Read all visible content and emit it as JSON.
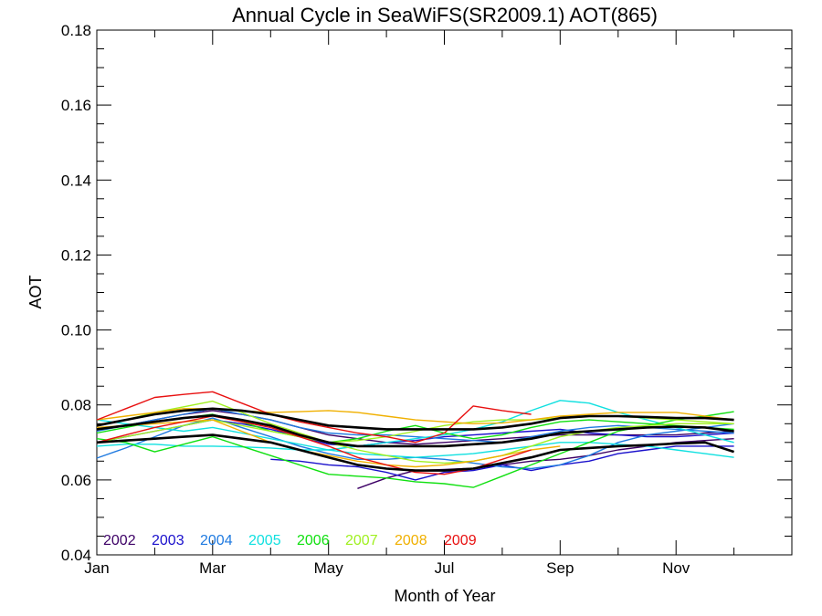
{
  "chart_data": {
    "type": "line",
    "title": "Annual Cycle in SeaWiFS(SR2009.1) AOT(865)",
    "xlabel": "Month of Year",
    "ylabel": "AOT",
    "xlim": [
      1,
      13
    ],
    "ylim": [
      0.04,
      0.18
    ],
    "x_ticks": [
      {
        "value": 1,
        "label": "Jan"
      },
      {
        "value": 3,
        "label": "Mar"
      },
      {
        "value": 5,
        "label": "May"
      },
      {
        "value": 7,
        "label": "Jul"
      },
      {
        "value": 9,
        "label": "Sep"
      },
      {
        "value": 11,
        "label": "Nov"
      }
    ],
    "y_ticks": [
      {
        "value": 0.04,
        "label": "0.04"
      },
      {
        "value": 0.06,
        "label": "0.06"
      },
      {
        "value": 0.08,
        "label": "0.08"
      },
      {
        "value": 0.1,
        "label": "0.10"
      },
      {
        "value": 0.12,
        "label": "0.12"
      },
      {
        "value": 0.14,
        "label": "0.14"
      },
      {
        "value": 0.16,
        "label": "0.16"
      },
      {
        "value": 0.18,
        "label": "0.18"
      }
    ],
    "legend_position": "bottom-left",
    "series": [
      {
        "name": "2002",
        "color": "#3d0066",
        "x": [
          5.5,
          6,
          6.5,
          7,
          7.5,
          8,
          8.5,
          9,
          9.5,
          10,
          10.5,
          11,
          11.5,
          12
        ],
        "y": [
          0.0577,
          0.0605,
          0.0625,
          0.0628,
          0.0631,
          0.064,
          0.065,
          0.0655,
          0.0665,
          0.068,
          0.069,
          0.07,
          0.0705,
          0.071
        ]
      },
      {
        "name": "2002",
        "color": "#3d0066",
        "x": [
          1,
          1.5,
          2,
          2.5,
          3,
          3.5,
          4,
          4.5,
          5,
          5.5,
          6,
          6.5,
          7,
          7.5,
          8,
          8.5,
          9,
          9.5,
          10,
          10.5,
          11,
          11.5,
          12
        ],
        "y": [
          0.0735,
          0.0745,
          0.076,
          0.0775,
          0.0785,
          0.0775,
          0.076,
          0.074,
          0.072,
          0.071,
          0.07,
          0.0695,
          0.07,
          0.0705,
          0.071,
          0.0715,
          0.072,
          0.072,
          0.072,
          0.072,
          0.072,
          0.0725,
          0.073
        ]
      },
      {
        "name": "2003",
        "color": "#1a10cc",
        "x": [
          4,
          4.5,
          5,
          5.5,
          6,
          6.5,
          7,
          7.5,
          8,
          8.5,
          9,
          9.5,
          10,
          10.5,
          11,
          11.5,
          12
        ],
        "y": [
          0.0655,
          0.065,
          0.064,
          0.0635,
          0.062,
          0.06,
          0.062,
          0.0625,
          0.064,
          0.0625,
          0.064,
          0.065,
          0.067,
          0.068,
          0.069,
          0.069,
          0.069
        ]
      },
      {
        "name": "2003",
        "color": "#1a10cc",
        "x": [
          1,
          1.5,
          2,
          2.5,
          3,
          3.5,
          4,
          4.5,
          5,
          5.5,
          6,
          6.5,
          7,
          7.5,
          8,
          8.5,
          9,
          9.5,
          10,
          10.5,
          11,
          11.5,
          12
        ],
        "y": [
          0.07,
          0.0715,
          0.073,
          0.0745,
          0.076,
          0.075,
          0.0735,
          0.0715,
          0.0695,
          0.069,
          0.07,
          0.0705,
          0.0715,
          0.072,
          0.0725,
          0.073,
          0.0735,
          0.0725,
          0.072,
          0.0715,
          0.0715,
          0.072,
          0.0725
        ]
      },
      {
        "name": "2004",
        "color": "#1f7ae0",
        "x": [
          1,
          1.5,
          2,
          2.5,
          3,
          3.5,
          4,
          4.5,
          5,
          5.5,
          6,
          6.5,
          7,
          7.5,
          8,
          8.5,
          9,
          9.5,
          10,
          10.5,
          11,
          11.5,
          12
        ],
        "y": [
          0.0658,
          0.0685,
          0.0715,
          0.0745,
          0.0765,
          0.074,
          0.0715,
          0.069,
          0.067,
          0.0655,
          0.0655,
          0.066,
          0.0655,
          0.0645,
          0.0635,
          0.063,
          0.064,
          0.0665,
          0.07,
          0.072,
          0.073,
          0.074,
          0.075
        ]
      },
      {
        "name": "2004",
        "color": "#1f7ae0",
        "x": [
          1,
          1.5,
          2,
          2.5,
          3,
          3.5,
          4,
          4.5,
          5,
          5.5,
          6,
          6.5,
          7,
          7.5,
          8,
          8.5,
          9,
          9.5,
          10,
          10.5,
          11,
          11.5,
          12
        ],
        "y": [
          0.073,
          0.0745,
          0.076,
          0.0775,
          0.079,
          0.0775,
          0.076,
          0.074,
          0.0725,
          0.072,
          0.072,
          0.0715,
          0.071,
          0.0705,
          0.07,
          0.0715,
          0.073,
          0.074,
          0.0745,
          0.074,
          0.0735,
          0.073,
          0.0725
        ]
      },
      {
        "name": "2005",
        "color": "#10e0e0",
        "x": [
          1,
          1.5,
          2,
          2.5,
          3,
          3.5,
          4,
          4.5,
          5,
          5.5,
          6,
          6.5,
          7,
          7.5,
          8,
          8.5,
          9,
          9.5,
          10,
          10.5,
          11,
          11.5,
          12
        ],
        "y": [
          0.069,
          0.0695,
          0.0695,
          0.069,
          0.069,
          0.0688,
          0.0685,
          0.068,
          0.068,
          0.069,
          0.07,
          0.071,
          0.072,
          0.0735,
          0.0755,
          0.0785,
          0.0812,
          0.0805,
          0.078,
          0.076,
          0.074,
          0.072,
          0.07
        ]
      },
      {
        "name": "2005",
        "color": "#10e0e0",
        "x": [
          1,
          1.5,
          2,
          2.5,
          3,
          3.5,
          4,
          4.5,
          5,
          5.5,
          6,
          6.5,
          7,
          7.5,
          8,
          8.5,
          9,
          9.5,
          10,
          10.5,
          11,
          11.5,
          12
        ],
        "y": [
          0.076,
          0.075,
          0.074,
          0.073,
          0.074,
          0.0725,
          0.071,
          0.0695,
          0.068,
          0.067,
          0.0665,
          0.066,
          0.0665,
          0.067,
          0.068,
          0.069,
          0.07,
          0.07,
          0.0695,
          0.069,
          0.068,
          0.067,
          0.066
        ]
      },
      {
        "name": "2006",
        "color": "#10e010",
        "x": [
          1,
          1.5,
          2,
          2.5,
          3,
          3.5,
          4,
          4.5,
          5,
          5.5,
          6,
          6.5,
          7,
          7.5,
          8,
          8.5,
          9,
          9.5,
          10,
          10.5,
          11,
          11.5,
          12
        ],
        "y": [
          0.071,
          0.07,
          0.0675,
          0.0695,
          0.0715,
          0.069,
          0.0665,
          0.064,
          0.0615,
          0.061,
          0.0605,
          0.0595,
          0.059,
          0.058,
          0.061,
          0.064,
          0.067,
          0.07,
          0.073,
          0.0745,
          0.076,
          0.077,
          0.0782
        ]
      },
      {
        "name": "2006",
        "color": "#10e010",
        "x": [
          1,
          1.5,
          2,
          2.5,
          3,
          3.5,
          4,
          4.5,
          5,
          5.5,
          6,
          6.5,
          7,
          7.5,
          8,
          8.5,
          9,
          9.5,
          10,
          10.5,
          11,
          11.5,
          12
        ],
        "y": [
          0.0725,
          0.074,
          0.0755,
          0.0765,
          0.0775,
          0.0755,
          0.073,
          0.0715,
          0.07,
          0.071,
          0.073,
          0.0745,
          0.0725,
          0.071,
          0.072,
          0.074,
          0.0755,
          0.076,
          0.0755,
          0.075,
          0.0745,
          0.074,
          0.0735
        ]
      },
      {
        "name": "2007",
        "color": "#a0f020",
        "x": [
          1,
          1.5,
          2,
          2.5,
          3,
          3.5,
          4,
          4.5,
          5,
          5.5,
          6,
          6.5,
          7,
          7.5,
          8,
          8.5,
          9,
          9.5,
          10,
          10.5,
          11,
          11.5,
          12
        ],
        "y": [
          0.0745,
          0.076,
          0.078,
          0.0795,
          0.081,
          0.078,
          0.075,
          0.0725,
          0.07,
          0.068,
          0.0665,
          0.065,
          0.0645,
          0.065,
          0.0665,
          0.069,
          0.0715,
          0.073,
          0.074,
          0.0745,
          0.075,
          0.075,
          0.075
        ]
      },
      {
        "name": "2007",
        "color": "#a0f020",
        "x": [
          1,
          1.5,
          2,
          2.5,
          3,
          3.5,
          4,
          4.5,
          5,
          5.5,
          6,
          6.5,
          7,
          7.5,
          8,
          8.5,
          9,
          9.5,
          10,
          10.5,
          11,
          11.5,
          12
        ],
        "y": [
          0.07,
          0.0715,
          0.073,
          0.0745,
          0.076,
          0.0745,
          0.073,
          0.0715,
          0.07,
          0.0705,
          0.0715,
          0.073,
          0.0745,
          0.0755,
          0.076,
          0.076,
          0.0765,
          0.077,
          0.077,
          0.0765,
          0.076,
          0.0755,
          0.075
        ]
      },
      {
        "name": "2008",
        "color": "#f0b000",
        "x": [
          1,
          1.5,
          2,
          2.5,
          3,
          3.5,
          4,
          4.5,
          5,
          5.5,
          6,
          6.5,
          7,
          7.5,
          8,
          8.5,
          9,
          9.5,
          10,
          10.5,
          11,
          11.5,
          12
        ],
        "y": [
          0.076,
          0.077,
          0.078,
          0.079,
          0.079,
          0.0785,
          0.078,
          0.0782,
          0.0785,
          0.078,
          0.077,
          0.076,
          0.0755,
          0.075,
          0.0752,
          0.076,
          0.077,
          0.0775,
          0.078,
          0.078,
          0.078,
          0.077,
          0.076
        ]
      },
      {
        "name": "2008",
        "color": "#f0b000",
        "x": [
          1,
          1.5,
          2,
          2.5,
          3,
          3.5,
          4,
          4.5,
          5,
          5.5,
          6,
          6.5,
          7,
          7.5,
          8,
          8.5,
          9
        ],
        "y": [
          0.074,
          0.0745,
          0.075,
          0.0755,
          0.076,
          0.073,
          0.07,
          0.068,
          0.0665,
          0.065,
          0.064,
          0.0635,
          0.064,
          0.065,
          0.0665,
          0.068,
          0.069
        ]
      },
      {
        "name": "2009",
        "color": "#e81010",
        "x": [
          1,
          1.5,
          2,
          2.5,
          3,
          3.5,
          4,
          4.5,
          5,
          5.5,
          6,
          6.5,
          7,
          7.5,
          8,
          8.5
        ],
        "y": [
          0.076,
          0.079,
          0.082,
          0.0828,
          0.0835,
          0.0805,
          0.0775,
          0.0755,
          0.074,
          0.0725,
          0.0715,
          0.07,
          0.0725,
          0.0797,
          0.0785,
          0.0775
        ]
      },
      {
        "name": "2009",
        "color": "#e81010",
        "x": [
          1,
          1.5,
          2,
          2.5,
          3,
          3.5,
          4,
          4.5,
          5,
          5.5,
          6,
          6.5,
          7,
          7.5,
          8,
          8.5
        ],
        "y": [
          0.07,
          0.072,
          0.074,
          0.0755,
          0.077,
          0.0755,
          0.074,
          0.0715,
          0.069,
          0.066,
          0.064,
          0.062,
          0.0615,
          0.063,
          0.0655,
          0.068
        ]
      },
      {
        "name": "",
        "color": "#000000",
        "bold": true,
        "x": [
          1,
          1.5,
          2,
          2.5,
          3,
          3.5,
          4,
          4.5,
          5,
          5.5,
          6,
          6.5,
          7,
          7.5,
          8,
          8.5,
          9,
          9.5,
          10,
          10.5,
          11,
          11.5,
          12
        ],
        "y": [
          0.07,
          0.0705,
          0.071,
          0.0715,
          0.072,
          0.071,
          0.07,
          0.068,
          0.066,
          0.064,
          0.063,
          0.0625,
          0.0625,
          0.063,
          0.0645,
          0.066,
          0.068,
          0.0685,
          0.069,
          0.0693,
          0.0697,
          0.07,
          0.0675
        ]
      },
      {
        "name": "",
        "color": "#000000",
        "bold": true,
        "x": [
          1,
          1.5,
          2,
          2.5,
          3,
          3.5,
          4,
          4.5,
          5,
          5.5,
          6,
          6.5,
          7,
          7.5,
          8,
          8.5,
          9,
          9.5,
          10,
          10.5,
          11,
          11.5,
          12
        ],
        "y": [
          0.0735,
          0.0745,
          0.0755,
          0.0765,
          0.0772,
          0.076,
          0.0745,
          0.072,
          0.07,
          0.069,
          0.069,
          0.069,
          0.069,
          0.0695,
          0.07,
          0.071,
          0.0725,
          0.073,
          0.0735,
          0.074,
          0.0742,
          0.074,
          0.073
        ]
      },
      {
        "name": "",
        "color": "#000000",
        "bold": true,
        "x": [
          1,
          1.5,
          2,
          2.5,
          3,
          3.5,
          4,
          4.5,
          5,
          5.5,
          6,
          6.5,
          7,
          7.5,
          8,
          8.5,
          9,
          9.5,
          10,
          10.5,
          11,
          11.5,
          12
        ],
        "y": [
          0.0745,
          0.076,
          0.0775,
          0.0785,
          0.079,
          0.0785,
          0.0775,
          0.076,
          0.0745,
          0.074,
          0.0735,
          0.0735,
          0.0735,
          0.0735,
          0.074,
          0.075,
          0.0765,
          0.077,
          0.077,
          0.0768,
          0.0765,
          0.0765,
          0.076
        ]
      }
    ],
    "legend": [
      {
        "label": "2002",
        "color": "#3d0066"
      },
      {
        "label": "2003",
        "color": "#1a10cc"
      },
      {
        "label": "2004",
        "color": "#1f7ae0"
      },
      {
        "label": "2005",
        "color": "#10e0e0"
      },
      {
        "label": "2006",
        "color": "#10e010"
      },
      {
        "label": "2007",
        "color": "#a0f020"
      },
      {
        "label": "2008",
        "color": "#f0b000"
      },
      {
        "label": "2009",
        "color": "#e81010"
      }
    ]
  }
}
